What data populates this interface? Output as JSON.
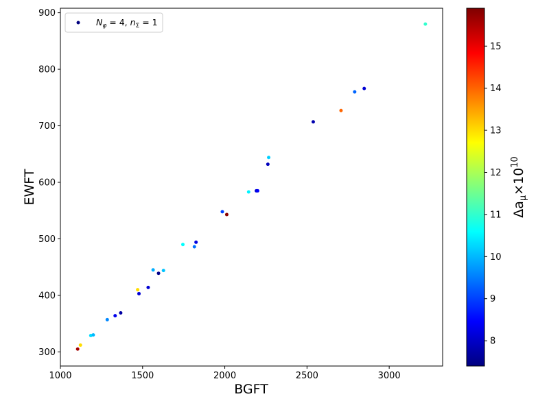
{
  "chart_data": {
    "type": "scatter",
    "xlabel": "BGFT",
    "ylabel": "EWFT",
    "xlim": [
      1000,
      3325
    ],
    "ylim": [
      275,
      908
    ],
    "xticks": [
      1000,
      1500,
      2000,
      2500,
      3000
    ],
    "yticks": [
      300,
      400,
      500,
      600,
      700,
      800,
      900
    ],
    "grid": false,
    "legend": {
      "location": "upper-left",
      "label": "N_φ = 4, n_Σ = 1",
      "label_parts": {
        "N": "N",
        "phi": "φ",
        "eq1": " = 4, ",
        "n": "n",
        "Sigma": "Σ",
        "eq2": " = 1"
      },
      "marker_color": "#00007f"
    },
    "colorbar": {
      "label": "Δa_μ × 10^10",
      "label_parts": {
        "delta_a": "Δa",
        "mu": "μ",
        "times": "×10",
        "exp": "10"
      },
      "colormap": "jet",
      "range": [
        7.4,
        15.9
      ],
      "ticks": [
        8,
        9,
        10,
        11,
        12,
        13,
        14,
        15
      ]
    },
    "series": [
      {
        "points": [
          {
            "x": 1105,
            "y": 305,
            "c": 15.6
          },
          {
            "x": 1122,
            "y": 312,
            "c": 13.0
          },
          {
            "x": 1185,
            "y": 329,
            "c": 10.3
          },
          {
            "x": 1200,
            "y": 330,
            "c": 10.0
          },
          {
            "x": 1285,
            "y": 357,
            "c": 9.6
          },
          {
            "x": 1333,
            "y": 364,
            "c": 8.3
          },
          {
            "x": 1367,
            "y": 369,
            "c": 7.7
          },
          {
            "x": 1470,
            "y": 410,
            "c": 13.0
          },
          {
            "x": 1478,
            "y": 403,
            "c": 8.1
          },
          {
            "x": 1534,
            "y": 414,
            "c": 8.1
          },
          {
            "x": 1564,
            "y": 445,
            "c": 9.9
          },
          {
            "x": 1597,
            "y": 439,
            "c": 7.5
          },
          {
            "x": 1627,
            "y": 444,
            "c": 10.1
          },
          {
            "x": 1745,
            "y": 490,
            "c": 10.6
          },
          {
            "x": 1815,
            "y": 486,
            "c": 9.4
          },
          {
            "x": 1825,
            "y": 494,
            "c": 8.2
          },
          {
            "x": 1985,
            "y": 548,
            "c": 9.0
          },
          {
            "x": 2012,
            "y": 543,
            "c": 15.8
          },
          {
            "x": 2145,
            "y": 583,
            "c": 10.5
          },
          {
            "x": 2192,
            "y": 585,
            "c": 8.1
          },
          {
            "x": 2200,
            "y": 585,
            "c": 8.4
          },
          {
            "x": 2262,
            "y": 632,
            "c": 7.9
          },
          {
            "x": 2267,
            "y": 644,
            "c": 10.2
          },
          {
            "x": 2538,
            "y": 707,
            "c": 7.8
          },
          {
            "x": 2707,
            "y": 727,
            "c": 14.0
          },
          {
            "x": 2790,
            "y": 760,
            "c": 9.3
          },
          {
            "x": 2848,
            "y": 766,
            "c": 8.1
          },
          {
            "x": 3220,
            "y": 880,
            "c": 11.0
          }
        ]
      }
    ]
  }
}
